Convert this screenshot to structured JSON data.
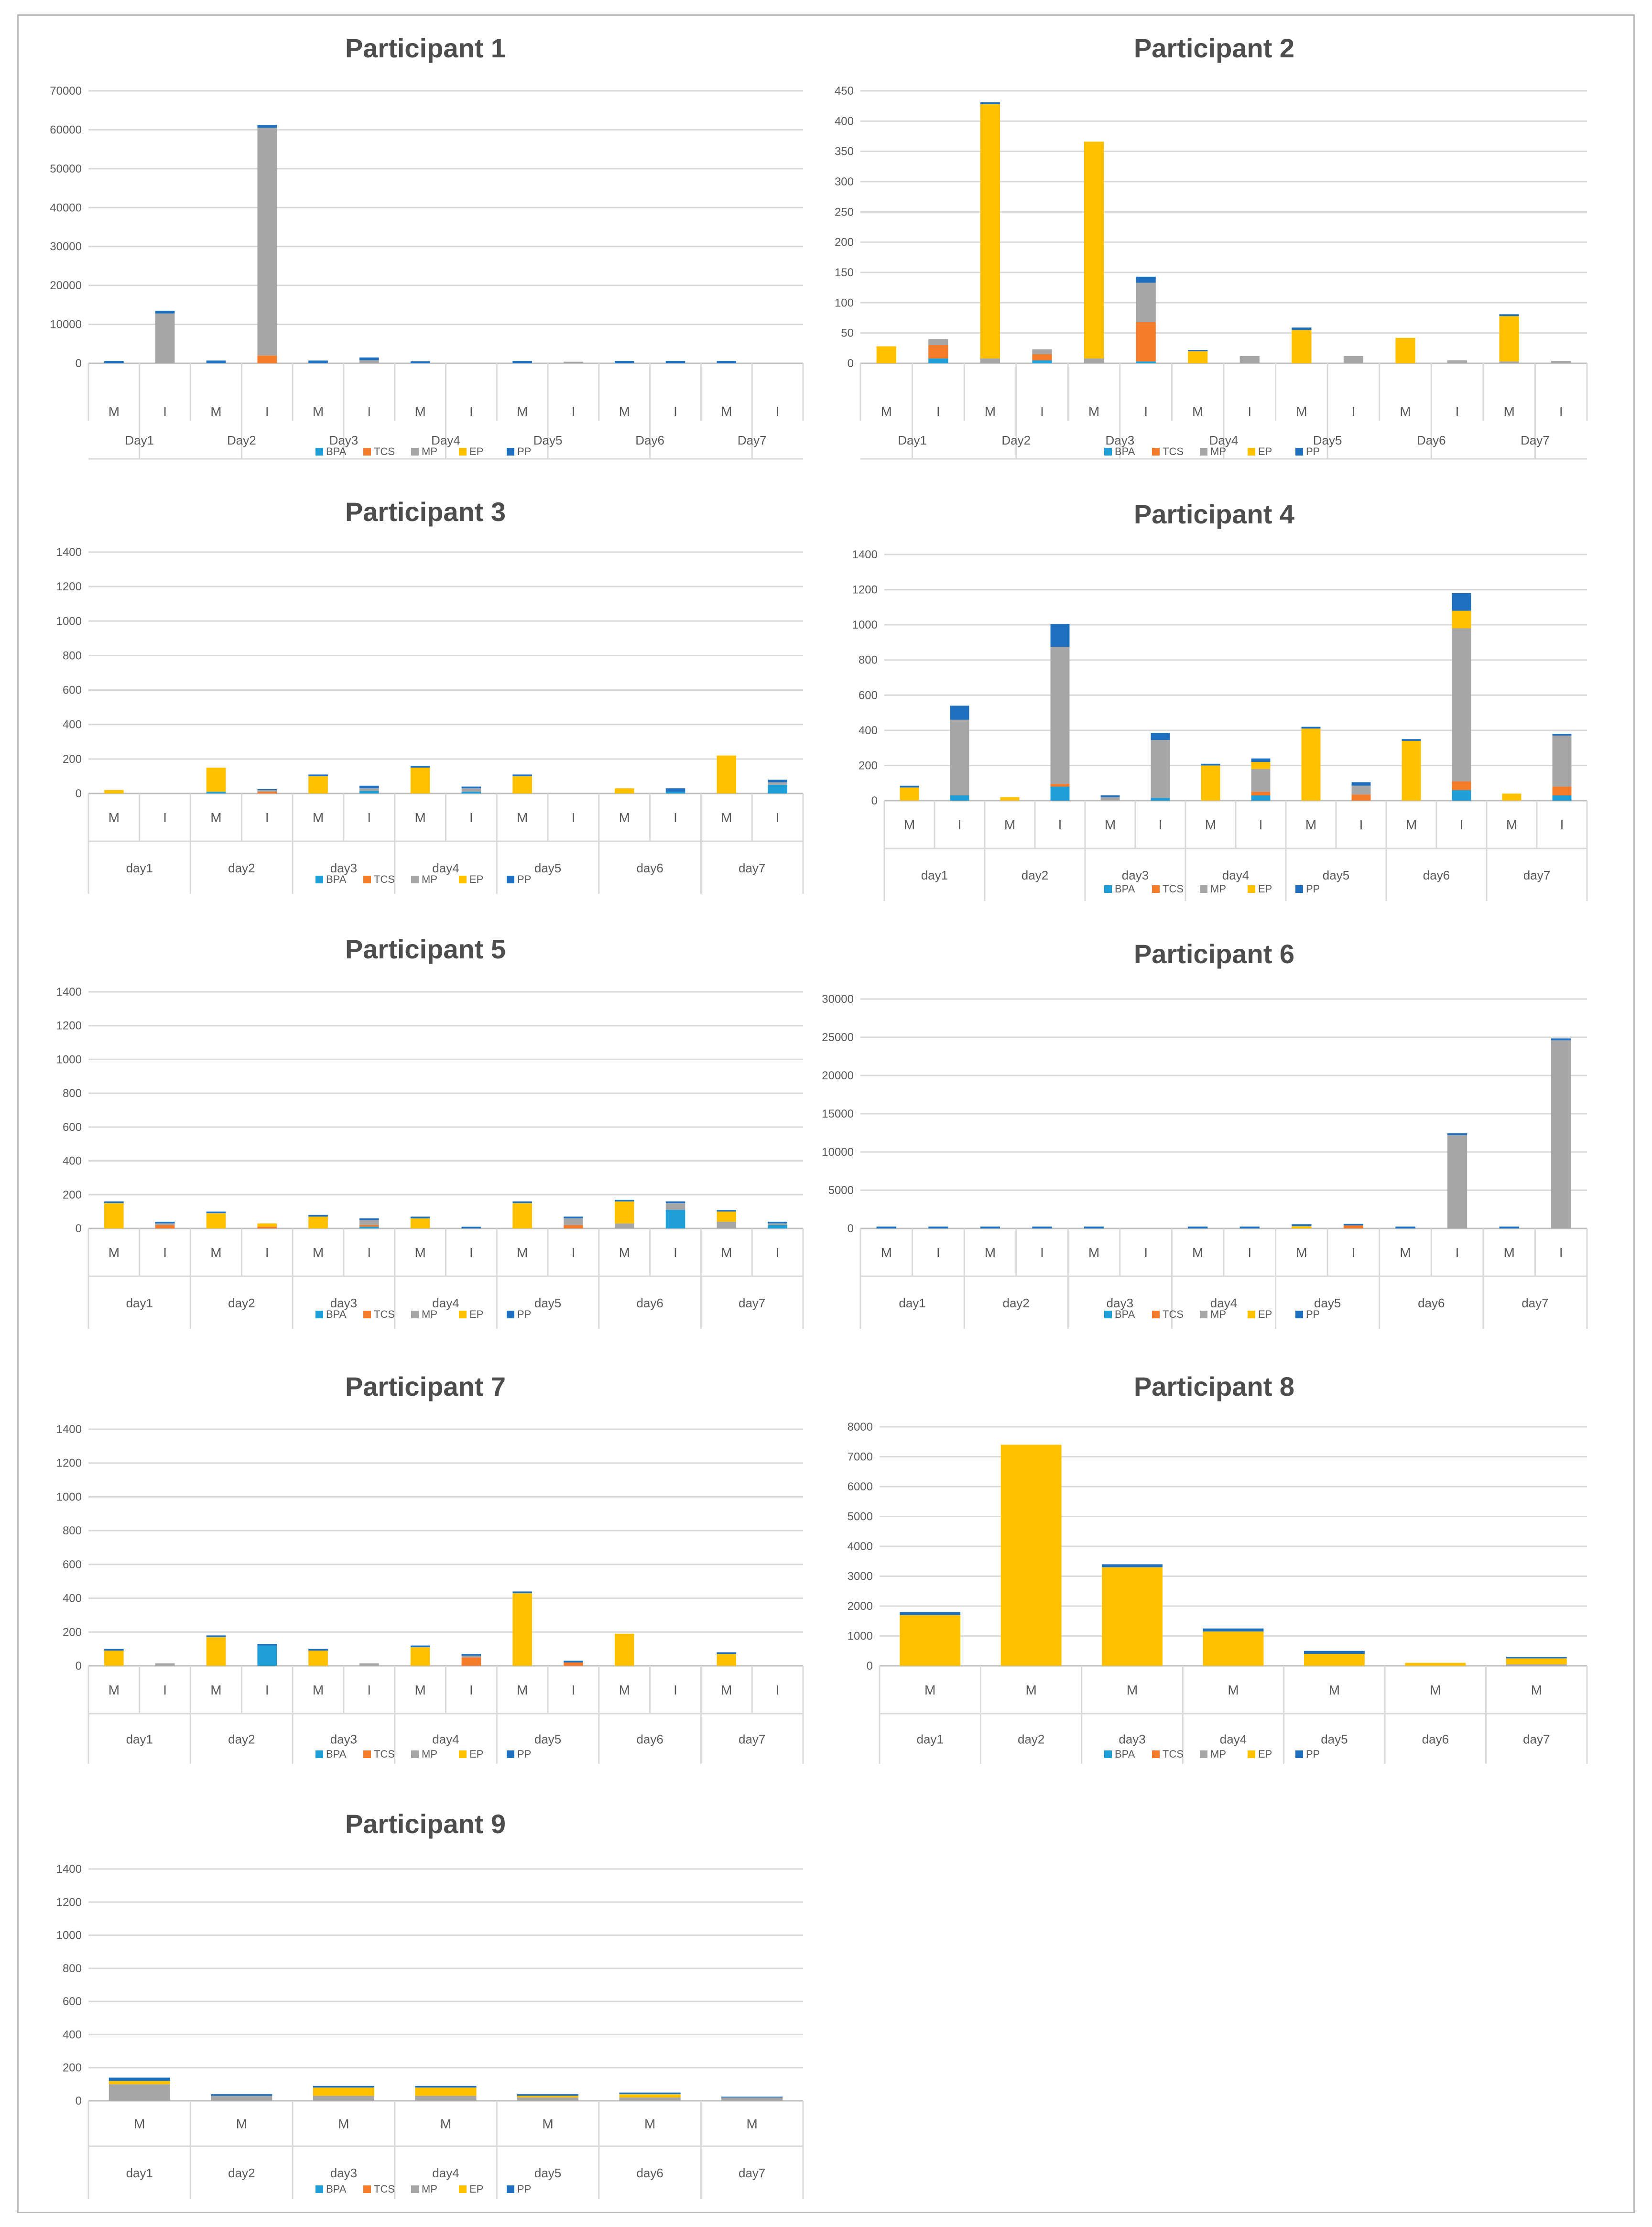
{
  "colors": {
    "BPA": "#1f9fd8",
    "TCS": "#f47b2a",
    "MP": "#a6a6a6",
    "EP": "#ffc000",
    "PP": "#1f6fbf",
    "grid": "#d9d9d9",
    "axis": "#bfbfbf",
    "text": "#595959",
    "title": "#4d4d4d"
  },
  "legend": [
    "BPA",
    "TCS",
    "MP",
    "EP",
    "PP"
  ],
  "chart_data": [
    {
      "type": "bar",
      "stacked": true,
      "title": "Participant 1",
      "ylim": [
        0,
        70000
      ],
      "yticks": [
        "0",
        "10000",
        "20000",
        "30000",
        "40000",
        "50000",
        "60000",
        "70000"
      ],
      "days": [
        "Day1",
        "Day2",
        "Day3",
        "Day4",
        "Day5",
        "Day6",
        "Day7"
      ],
      "periods": [
        "M",
        "I"
      ],
      "series": [
        {
          "name": "BPA",
          "values": [
            0,
            0,
            0,
            0,
            0,
            0,
            0,
            0,
            0,
            0,
            0,
            0,
            0,
            0
          ]
        },
        {
          "name": "TCS",
          "values": [
            0,
            0,
            0,
            2000,
            0,
            0,
            0,
            0,
            0,
            0,
            0,
            0,
            0,
            0
          ]
        },
        {
          "name": "MP",
          "values": [
            0,
            12800,
            0,
            58500,
            0,
            800,
            0,
            0,
            0,
            400,
            0,
            0,
            0,
            0
          ]
        },
        {
          "name": "EP",
          "values": [
            0,
            0,
            0,
            0,
            0,
            0,
            0,
            0,
            0,
            0,
            0,
            0,
            0,
            0
          ]
        },
        {
          "name": "PP",
          "values": [
            600,
            700,
            700,
            700,
            700,
            700,
            500,
            0,
            600,
            0,
            600,
            600,
            600,
            0
          ]
        }
      ]
    },
    {
      "type": "bar",
      "stacked": true,
      "title": "Participant 2",
      "ylim": [
        0,
        450
      ],
      "yticks": [
        "0",
        "50",
        "100",
        "150",
        "200",
        "250",
        "300",
        "350",
        "400",
        "450"
      ],
      "days": [
        "Day1",
        "Day2",
        "Day3",
        "Day4",
        "Day5",
        "Day6",
        "Day7"
      ],
      "periods": [
        "M",
        "I"
      ],
      "series": [
        {
          "name": "BPA",
          "values": [
            0,
            8,
            0,
            5,
            0,
            3,
            0,
            0,
            0,
            0,
            0,
            0,
            0,
            0
          ]
        },
        {
          "name": "TCS",
          "values": [
            0,
            22,
            0,
            10,
            0,
            65,
            0,
            0,
            0,
            0,
            0,
            0,
            0,
            0
          ]
        },
        {
          "name": "MP",
          "values": [
            0,
            10,
            8,
            8,
            8,
            65,
            0,
            12,
            0,
            12,
            0,
            5,
            3,
            4
          ]
        },
        {
          "name": "EP",
          "values": [
            28,
            0,
            420,
            0,
            358,
            0,
            20,
            0,
            55,
            0,
            42,
            0,
            75,
            0
          ]
        },
        {
          "name": "PP",
          "values": [
            0,
            0,
            3,
            0,
            0,
            10,
            2,
            0,
            4,
            0,
            0,
            0,
            3,
            0
          ]
        }
      ]
    },
    {
      "type": "bar",
      "stacked": true,
      "title": "Participant 3",
      "ylim": [
        0,
        1400
      ],
      "yticks": [
        "0",
        "200",
        "400",
        "600",
        "800",
        "1000",
        "1200",
        "1400"
      ],
      "days": [
        "day1",
        "day2",
        "day3",
        "day4",
        "day5",
        "day6",
        "day7"
      ],
      "periods": [
        "M",
        "I"
      ],
      "series": [
        {
          "name": "BPA",
          "values": [
            0,
            0,
            10,
            0,
            0,
            15,
            0,
            10,
            0,
            0,
            0,
            10,
            0,
            50
          ]
        },
        {
          "name": "TCS",
          "values": [
            0,
            0,
            0,
            10,
            0,
            0,
            0,
            0,
            0,
            0,
            0,
            0,
            0,
            0
          ]
        },
        {
          "name": "MP",
          "values": [
            0,
            0,
            0,
            10,
            0,
            15,
            0,
            20,
            0,
            0,
            0,
            0,
            0,
            15
          ]
        },
        {
          "name": "EP",
          "values": [
            20,
            0,
            140,
            0,
            100,
            0,
            150,
            0,
            100,
            0,
            30,
            0,
            220,
            0
          ]
        },
        {
          "name": "PP",
          "values": [
            0,
            0,
            0,
            5,
            10,
            15,
            10,
            10,
            10,
            0,
            0,
            20,
            0,
            15
          ]
        }
      ]
    },
    {
      "type": "bar",
      "stacked": true,
      "title": "Participant 4",
      "ylim": [
        0,
        1400
      ],
      "yticks": [
        "0",
        "200",
        "400",
        "600",
        "800",
        "1000",
        "1200",
        "1400"
      ],
      "days": [
        "day1",
        "day2",
        "day3",
        "day4",
        "day5",
        "day6",
        "day7"
      ],
      "periods": [
        "M",
        "I"
      ],
      "series": [
        {
          "name": "BPA",
          "values": [
            0,
            30,
            0,
            80,
            0,
            15,
            0,
            30,
            0,
            0,
            0,
            60,
            0,
            30
          ]
        },
        {
          "name": "TCS",
          "values": [
            0,
            0,
            0,
            15,
            0,
            0,
            0,
            20,
            0,
            35,
            0,
            50,
            0,
            50
          ]
        },
        {
          "name": "MP",
          "values": [
            0,
            430,
            0,
            780,
            20,
            330,
            0,
            130,
            0,
            50,
            0,
            870,
            0,
            290
          ]
        },
        {
          "name": "EP",
          "values": [
            75,
            0,
            20,
            0,
            0,
            0,
            200,
            40,
            410,
            0,
            340,
            100,
            40,
            0
          ]
        },
        {
          "name": "PP",
          "values": [
            10,
            80,
            0,
            130,
            10,
            40,
            10,
            20,
            10,
            20,
            10,
            100,
            0,
            10
          ]
        }
      ]
    },
    {
      "type": "bar",
      "stacked": true,
      "title": "Participant 5",
      "ylim": [
        0,
        1400
      ],
      "yticks": [
        "0",
        "200",
        "400",
        "600",
        "800",
        "1000",
        "1200",
        "1400"
      ],
      "days": [
        "day1",
        "day2",
        "day3",
        "day4",
        "day5",
        "day6",
        "day7"
      ],
      "periods": [
        "M",
        "I"
      ],
      "series": [
        {
          "name": "BPA",
          "values": [
            0,
            0,
            0,
            0,
            0,
            10,
            0,
            0,
            0,
            0,
            0,
            110,
            0,
            20
          ]
        },
        {
          "name": "TCS",
          "values": [
            0,
            20,
            0,
            10,
            0,
            10,
            0,
            0,
            0,
            20,
            0,
            0,
            0,
            0
          ]
        },
        {
          "name": "MP",
          "values": [
            0,
            10,
            0,
            0,
            0,
            30,
            0,
            0,
            0,
            40,
            30,
            40,
            40,
            10
          ]
        },
        {
          "name": "EP",
          "values": [
            150,
            0,
            90,
            20,
            70,
            0,
            60,
            0,
            150,
            0,
            130,
            0,
            60,
            0
          ]
        },
        {
          "name": "PP",
          "values": [
            10,
            10,
            10,
            0,
            10,
            10,
            10,
            10,
            10,
            10,
            10,
            10,
            10,
            10
          ]
        }
      ]
    },
    {
      "type": "bar",
      "stacked": true,
      "title": "Participant 6",
      "ylim": [
        0,
        30000
      ],
      "yticks": [
        "0",
        "5000",
        "10000",
        "15000",
        "20000",
        "25000",
        "30000"
      ],
      "days": [
        "day1",
        "day2",
        "day3",
        "day4",
        "day5",
        "day6",
        "day7"
      ],
      "periods": [
        "M",
        "I"
      ],
      "series": [
        {
          "name": "BPA",
          "values": [
            0,
            0,
            0,
            0,
            0,
            0,
            0,
            0,
            0,
            0,
            0,
            0,
            0,
            0
          ]
        },
        {
          "name": "TCS",
          "values": [
            0,
            0,
            0,
            0,
            0,
            0,
            0,
            0,
            0,
            400,
            0,
            0,
            0,
            0
          ]
        },
        {
          "name": "MP",
          "values": [
            0,
            0,
            0,
            0,
            0,
            0,
            0,
            0,
            0,
            0,
            0,
            12200,
            0,
            24600
          ]
        },
        {
          "name": "EP",
          "values": [
            0,
            0,
            0,
            0,
            0,
            0,
            0,
            0,
            300,
            0,
            0,
            0,
            0,
            0
          ]
        },
        {
          "name": "PP",
          "values": [
            250,
            250,
            250,
            250,
            250,
            0,
            250,
            250,
            250,
            200,
            250,
            250,
            250,
            250
          ]
        }
      ]
    },
    {
      "type": "bar",
      "stacked": true,
      "title": "Participant 7",
      "ylim": [
        0,
        1400
      ],
      "yticks": [
        "0",
        "200",
        "400",
        "600",
        "800",
        "1000",
        "1200",
        "1400"
      ],
      "days": [
        "day1",
        "day2",
        "day3",
        "day4",
        "day5",
        "day6",
        "day7"
      ],
      "periods": [
        "M",
        "I"
      ],
      "series": [
        {
          "name": "BPA",
          "values": [
            0,
            0,
            0,
            120,
            0,
            0,
            0,
            0,
            0,
            0,
            0,
            0,
            0,
            0
          ]
        },
        {
          "name": "TCS",
          "values": [
            0,
            0,
            0,
            0,
            0,
            0,
            0,
            50,
            0,
            20,
            0,
            0,
            0,
            0
          ]
        },
        {
          "name": "MP",
          "values": [
            0,
            15,
            0,
            0,
            0,
            15,
            0,
            10,
            0,
            0,
            0,
            0,
            0,
            0
          ]
        },
        {
          "name": "EP",
          "values": [
            90,
            0,
            170,
            0,
            90,
            0,
            110,
            0,
            430,
            0,
            190,
            0,
            70,
            0
          ]
        },
        {
          "name": "PP",
          "values": [
            10,
            0,
            10,
            10,
            10,
            0,
            10,
            10,
            10,
            10,
            0,
            0,
            10,
            0
          ]
        }
      ]
    },
    {
      "type": "bar",
      "stacked": true,
      "title": "Participant  8",
      "ylim": [
        0,
        8000
      ],
      "yticks": [
        "0",
        "1000",
        "2000",
        "3000",
        "4000",
        "5000",
        "6000",
        "7000",
        "8000"
      ],
      "days": [
        "day1",
        "day2",
        "day3",
        "day4",
        "day5",
        "day6",
        "day7"
      ],
      "periods": [
        "M"
      ],
      "series": [
        {
          "name": "BPA",
          "values": [
            0,
            0,
            0,
            0,
            0,
            0,
            0
          ]
        },
        {
          "name": "TCS",
          "values": [
            0,
            0,
            0,
            0,
            0,
            0,
            0
          ]
        },
        {
          "name": "MP",
          "values": [
            0,
            0,
            0,
            0,
            0,
            0,
            50
          ]
        },
        {
          "name": "EP",
          "values": [
            1700,
            7400,
            3300,
            1150,
            400,
            100,
            200
          ]
        },
        {
          "name": "PP",
          "values": [
            100,
            0,
            100,
            100,
            100,
            0,
            50
          ]
        }
      ]
    },
    {
      "type": "bar",
      "stacked": true,
      "title": "Participant 9",
      "ylim": [
        0,
        1400
      ],
      "yticks": [
        "0",
        "200",
        "400",
        "600",
        "800",
        "1000",
        "1200",
        "1400"
      ],
      "days": [
        "day1",
        "day2",
        "day3",
        "day4",
        "day5",
        "day6",
        "day7"
      ],
      "periods": [
        "M"
      ],
      "series": [
        {
          "name": "BPA",
          "values": [
            0,
            0,
            0,
            0,
            0,
            0,
            0
          ]
        },
        {
          "name": "TCS",
          "values": [
            0,
            0,
            0,
            0,
            0,
            0,
            0
          ]
        },
        {
          "name": "MP",
          "values": [
            100,
            30,
            30,
            30,
            20,
            20,
            20
          ]
        },
        {
          "name": "EP",
          "values": [
            20,
            0,
            50,
            50,
            10,
            20,
            0
          ]
        },
        {
          "name": "PP",
          "values": [
            20,
            10,
            10,
            10,
            10,
            10,
            5
          ]
        }
      ]
    }
  ]
}
